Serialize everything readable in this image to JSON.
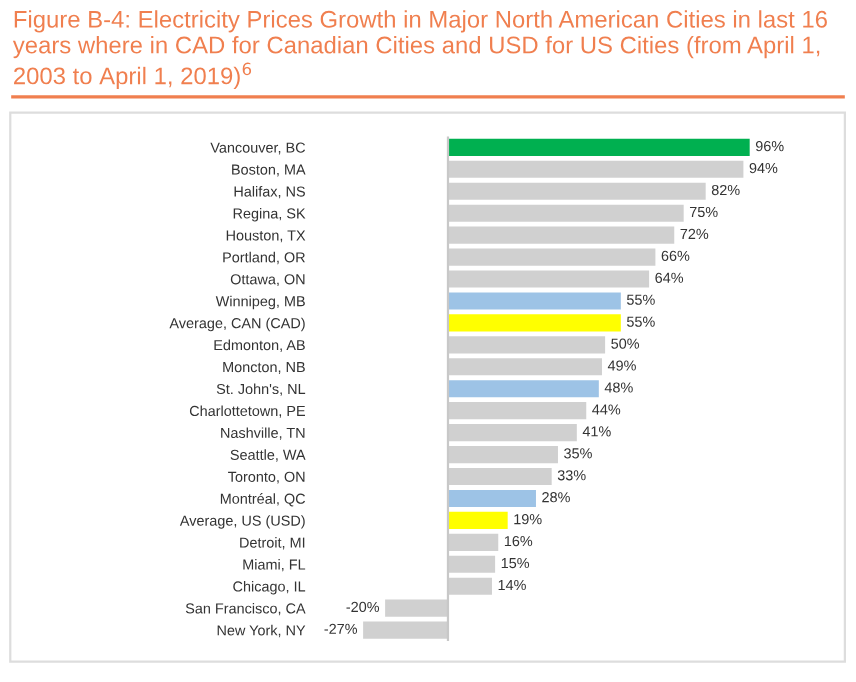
{
  "chart_data": {
    "type": "bar",
    "orientation": "horizontal",
    "title": "Figure B-4: Electricity Prices Growth in Major North American Cities in last 16 years where in CAD for Canadian Cities and USD for US Cities (from April 1, 2003 to April 1, 2019)$^{6}$",
    "categories": [
      "Vancouver, BC",
      "Boston, MA",
      "Halifax, NS",
      "Regina, SK",
      "Houston, TX",
      "Portland, OR",
      "Ottawa, ON",
      "Winnipeg, MB",
      "Average, CAN (CAD)",
      "Edmonton, AB",
      "Moncton, NB",
      "St. John's, NL",
      "Charlottetown, PE",
      "Nashville, TN",
      "Seattle, WA",
      "Toronto, ON",
      "Montréal, QC",
      "Average, US (USD)",
      "Detroit, MI",
      "Miami, FL",
      "Chicago, IL",
      "San Francisco, CA",
      "New York, NY"
    ],
    "values": [
      96,
      94,
      82,
      75,
      72,
      66,
      64,
      55,
      55,
      50,
      49,
      48,
      44,
      41,
      35,
      33,
      28,
      19,
      16,
      15,
      14,
      -20,
      -27
    ],
    "value_labels": [
      "96%",
      "94%",
      "82%",
      "75%",
      "72%",
      "66%",
      "64%",
      "55%",
      "55%",
      "50%",
      "49%",
      "48%",
      "44%",
      "41%",
      "35%",
      "33%",
      "28%",
      "19%",
      "16%",
      "15%",
      "14%",
      "-20%",
      "-27%"
    ],
    "colors": [
      "#00b050",
      "#d0d0d0",
      "#d0d0d0",
      "#d0d0d0",
      "#d0d0d0",
      "#d0d0d0",
      "#d0d0d0",
      "#9dc3e6",
      "#ffff00",
      "#d0d0d0",
      "#d0d0d0",
      "#9dc3e6",
      "#d0d0d0",
      "#d0d0d0",
      "#d0d0d0",
      "#d0d0d0",
      "#9dc3e6",
      "#ffff00",
      "#d0d0d0",
      "#d0d0d0",
      "#d0d0d0",
      "#d0d0d0",
      "#d0d0d0"
    ],
    "grid": false,
    "legend": false,
    "tick_labels": "y"
  }
}
